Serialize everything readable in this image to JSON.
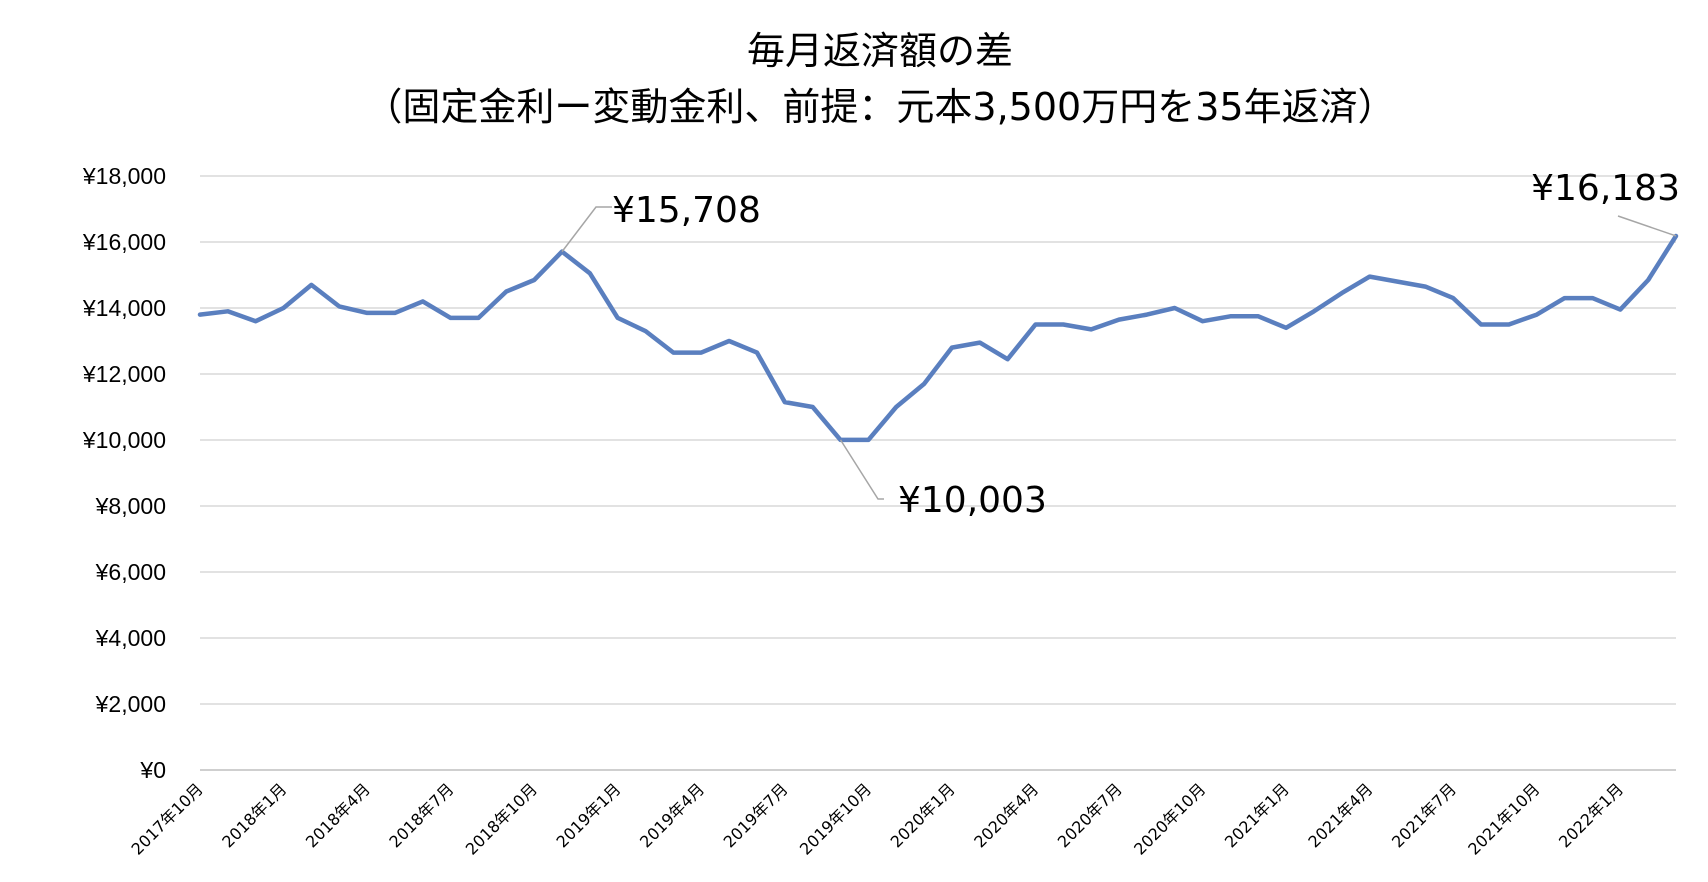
{
  "chart_data": {
    "type": "line",
    "title": "毎月返済額の差",
    "subtitle": "（固定金利ー変動金利、前提：元本3,500万円を35年返済）",
    "xlabel": "",
    "ylabel": "",
    "ylim": [
      0,
      18000
    ],
    "yticks": [
      0,
      2000,
      4000,
      6000,
      8000,
      10000,
      12000,
      14000,
      16000,
      18000
    ],
    "ytick_labels": [
      "¥0",
      "¥2,000",
      "¥4,000",
      "¥6,000",
      "¥8,000",
      "¥10,000",
      "¥12,000",
      "¥14,000",
      "¥16,000",
      "¥18,000"
    ],
    "grid": true,
    "legend": "none",
    "x": [
      "2017年10月",
      "2017年11月",
      "2017年12月",
      "2018年1月",
      "2018年2月",
      "2018年3月",
      "2018年4月",
      "2018年5月",
      "2018年6月",
      "2018年7月",
      "2018年8月",
      "2018年9月",
      "2018年10月",
      "2018年11月",
      "2018年12月",
      "2019年1月",
      "2019年2月",
      "2019年3月",
      "2019年4月",
      "2019年5月",
      "2019年6月",
      "2019年7月",
      "2019年8月",
      "2019年9月",
      "2019年10月",
      "2019年11月",
      "2019年12月",
      "2020年1月",
      "2020年2月",
      "2020年3月",
      "2020年4月",
      "2020年5月",
      "2020年6月",
      "2020年7月",
      "2020年8月",
      "2020年9月",
      "2020年10月",
      "2020年11月",
      "2020年12月",
      "2021年1月",
      "2021年2月",
      "2021年3月",
      "2021年4月",
      "2021年5月",
      "2021年6月",
      "2021年7月",
      "2021年8月",
      "2021年9月",
      "2021年10月",
      "2021年11月",
      "2021年12月",
      "2022年1月",
      "2022年2月",
      "2022年3月"
    ],
    "x_tick_labels": [
      {
        "index": 0,
        "label": "2017年10月"
      },
      {
        "index": 3,
        "label": "2018年1月"
      },
      {
        "index": 6,
        "label": "2018年4月"
      },
      {
        "index": 9,
        "label": "2018年7月"
      },
      {
        "index": 12,
        "label": "2018年10月"
      },
      {
        "index": 15,
        "label": "2019年1月"
      },
      {
        "index": 18,
        "label": "2019年4月"
      },
      {
        "index": 21,
        "label": "2019年7月"
      },
      {
        "index": 24,
        "label": "2019年10月"
      },
      {
        "index": 27,
        "label": "2020年1月"
      },
      {
        "index": 30,
        "label": "2020年4月"
      },
      {
        "index": 33,
        "label": "2020年7月"
      },
      {
        "index": 36,
        "label": "2020年10月"
      },
      {
        "index": 39,
        "label": "2021年1月"
      },
      {
        "index": 42,
        "label": "2021年4月"
      },
      {
        "index": 45,
        "label": "2021年7月"
      },
      {
        "index": 48,
        "label": "2021年10月"
      },
      {
        "index": 51,
        "label": "2022年1月"
      }
    ],
    "series": [
      {
        "color": "#5A7FBF",
        "values": [
          13800,
          13900,
          13600,
          14000,
          14700,
          14050,
          13850,
          13850,
          14200,
          13700,
          13700,
          14500,
          14850,
          15708,
          15050,
          13700,
          13300,
          12650,
          12650,
          13000,
          12650,
          11150,
          11000,
          10003,
          10003,
          11000,
          11700,
          12800,
          12950,
          12450,
          13500,
          13500,
          13350,
          13650,
          13800,
          14000,
          13600,
          13750,
          13750,
          13400,
          13900,
          14450,
          14950,
          14800,
          14650,
          14300,
          13500,
          13500,
          13800,
          14300,
          14300,
          13950,
          14850,
          16183
        ]
      }
    ],
    "annotations": [
      {
        "index": 13,
        "label": "¥15,708",
        "color": "#000000"
      },
      {
        "index": 23,
        "label": "¥10,003",
        "color": "#000000"
      },
      {
        "index": 53,
        "label": "¥16,183",
        "color": "#E8312A"
      }
    ]
  }
}
